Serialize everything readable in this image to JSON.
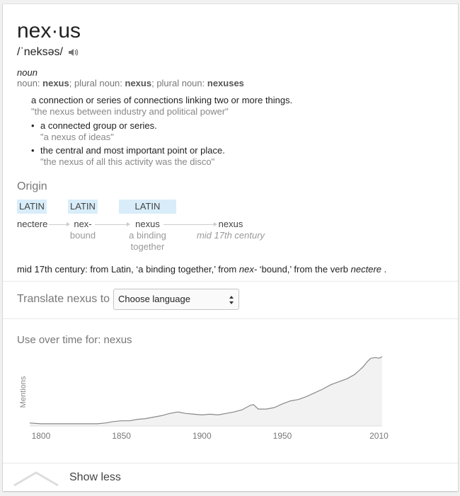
{
  "headword": "nex·us",
  "pronunciation": "/ˈneksəs/",
  "part_of_speech": "noun",
  "forms": {
    "prefix1": "noun: ",
    "form1": "nexus",
    "sep1": "; plural noun: ",
    "form2": "nexus",
    "sep2": "; plural noun: ",
    "form3": "nexuses"
  },
  "definitions": {
    "main": {
      "text": "a connection or series of connections linking two or more things.",
      "example": "\"the nexus between industry and political power\""
    },
    "sub1": {
      "text": "a connected group or series.",
      "example": "\"a nexus of ideas\""
    },
    "sub2": {
      "text": "the central and most important point or place.",
      "example": "\"the nexus of all this activity was the disco\""
    }
  },
  "origin": {
    "title": "Origin",
    "tags": [
      "LATIN",
      "LATIN",
      "LATIN"
    ],
    "nodes": [
      {
        "word": "nectere",
        "gloss": ""
      },
      {
        "word": "nex-",
        "gloss": "bound"
      },
      {
        "word": "nexus",
        "gloss_line1": "a binding",
        "gloss_line2": "together"
      },
      {
        "word": "nexus",
        "gloss": "mid 17th century"
      }
    ],
    "text": {
      "part1": "mid 17th century: from Latin, ‘a binding together,’ from ",
      "ital1": "nex-",
      "part2": " ‘bound,’ from the verb ",
      "ital2": "nectere",
      "part3": " ."
    }
  },
  "translate": {
    "label": "Translate nexus to",
    "select_value": "Choose language"
  },
  "usage": {
    "title": "Use over time for: nexus"
  },
  "chart_data": {
    "type": "area",
    "ylabel": "Mentions",
    "xlabel": "",
    "x_ticks": [
      "1800",
      "1850",
      "1900",
      "1950",
      "2010"
    ],
    "xlim": [
      1793,
      2012
    ],
    "ylim": [
      0,
      100
    ],
    "x": [
      1793,
      1800,
      1805,
      1810,
      1815,
      1820,
      1825,
      1830,
      1835,
      1840,
      1845,
      1850,
      1855,
      1860,
      1865,
      1870,
      1875,
      1880,
      1885,
      1890,
      1895,
      1900,
      1905,
      1910,
      1915,
      1920,
      1925,
      1930,
      1932,
      1935,
      1940,
      1945,
      1950,
      1955,
      1960,
      1965,
      1970,
      1975,
      1980,
      1985,
      1990,
      1995,
      2000,
      2003,
      2005,
      2008,
      2010,
      2012
    ],
    "values": [
      4,
      3,
      3,
      3,
      3,
      3,
      3,
      3,
      3,
      4,
      6,
      7,
      7,
      9,
      10,
      12,
      14,
      17,
      19,
      17,
      16,
      15,
      16,
      15,
      17,
      19,
      22,
      28,
      29,
      23,
      23,
      25,
      30,
      34,
      36,
      40,
      45,
      50,
      56,
      60,
      64,
      70,
      80,
      88,
      92,
      93,
      92,
      94
    ],
    "color": "#f2f2f2",
    "line_color": "#888888"
  },
  "footer": {
    "show_less": "Show less"
  }
}
